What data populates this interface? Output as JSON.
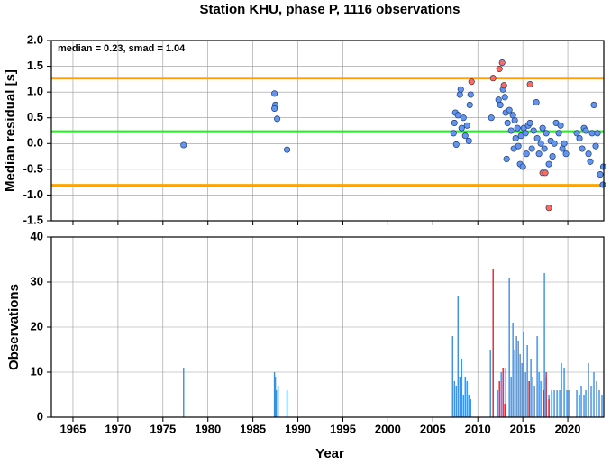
{
  "chart_data": [
    {
      "type": "scatter",
      "title": "Station KHU, phase P, 1116 observations",
      "ylabel": "Median residual [s]",
      "annotation": "median = 0.23, smad = 1.04",
      "ylim": [
        -1.5,
        2
      ],
      "yticks": [
        {
          "value": 2,
          "label": "2.0"
        },
        1.5,
        {
          "value": 1,
          "label": "1.0"
        },
        0.5,
        {
          "value": 0,
          "label": "0.0"
        },
        -0.5,
        {
          "value": -1,
          "label": "-1.0"
        },
        -1.5
      ],
      "grid": true,
      "hlines": [
        {
          "value": 1.27,
          "color": "#ffa500"
        },
        {
          "value": 0.23,
          "color": "#22ee22"
        },
        {
          "value": -0.81,
          "color": "#ffa500"
        }
      ],
      "series": [
        {
          "color": "#6495ed",
          "x": [
            1977.3,
            1987.4,
            1987.5,
            1987.4,
            1987.7,
            1988.8,
            2007.3,
            2007.4,
            2007.5,
            2007.6,
            2007.8,
            2008.0,
            2008.1,
            2008.2,
            2008.4,
            2008.6,
            2008.8,
            2009.0,
            2009.1,
            2009.2,
            2011.5,
            2012.3,
            2012.5,
            2012.8,
            2013.0,
            2013.1,
            2013.3,
            2013.5,
            2013.7,
            2013.9,
            2014.0,
            2014.1,
            2014.2,
            2014.4,
            2014.5,
            2014.7,
            2014.8,
            2015.0,
            2015.1,
            2015.3,
            2015.4,
            2015.6,
            2015.8,
            2016.0,
            2016.2,
            2016.5,
            2016.6,
            2016.8,
            2017.0,
            2017.2,
            2017.4,
            2017.6,
            2017.9,
            2018.1,
            2018.3,
            2018.5,
            2018.7,
            2019.0,
            2019.2,
            2019.4,
            2019.6,
            2019.8,
            2021.0,
            2021.3,
            2021.6,
            2021.8,
            2022.0,
            2022.3,
            2022.5,
            2022.7,
            2022.9,
            2023.1,
            2023.3,
            2023.6,
            2023.9,
            2023.95,
            2013.2
          ],
          "values": [
            -0.03,
            0.97,
            0.75,
            0.68,
            0.48,
            -0.12,
            0.2,
            0.4,
            0.6,
            -0.02,
            0.55,
            0.95,
            1.05,
            0.3,
            0.5,
            0.15,
            0.35,
            0.05,
            0.75,
            0.95,
            0.5,
            0.85,
            0.75,
            1.05,
            0.9,
            0.6,
            0.4,
            0.65,
            0.25,
            0.55,
            -0.1,
            0.45,
            0.1,
            0.3,
            -0.05,
            -0.4,
            0.15,
            -0.45,
            0.3,
            0.2,
            -0.2,
            0.35,
            0.4,
            -0.1,
            0.25,
            0.8,
            0.1,
            -0.2,
            0.0,
            0.3,
            -0.1,
            0.2,
            -0.4,
            0.05,
            -0.25,
            0.0,
            0.4,
            0.2,
            0.35,
            -0.1,
            0.0,
            -0.2,
            0.2,
            0.1,
            -0.1,
            0.3,
            0.25,
            -0.2,
            -0.35,
            0.2,
            0.75,
            -0.05,
            0.2,
            -0.6,
            -0.8,
            -0.45,
            -0.3
          ]
        },
        {
          "color": "#ff6a5a",
          "x": [
            2009.3,
            2011.7,
            2012.4,
            2012.7,
            2012.9,
            2015.8,
            2017.2,
            2017.5,
            2017.9
          ],
          "values": [
            1.2,
            1.27,
            1.45,
            1.57,
            1.13,
            1.15,
            -0.57,
            -0.57,
            -1.25
          ]
        }
      ]
    },
    {
      "type": "bar",
      "ylabel": "Observations",
      "xlabel": "Year",
      "xlim": [
        1962.6,
        2024
      ],
      "xticks": [
        1965,
        1970,
        1975,
        1980,
        1985,
        1990,
        1995,
        2000,
        2005,
        2010,
        2015,
        2020
      ],
      "ylim": [
        0,
        40
      ],
      "yticks": [
        0,
        10,
        20,
        30,
        40
      ],
      "grid": true,
      "series": [
        {
          "color": "#3a8ee6",
          "x": [
            1977.3,
            1987.4,
            1987.5,
            1987.6,
            1987.8,
            1988.8,
            2007.2,
            2007.4,
            2007.6,
            2007.8,
            2008.0,
            2008.2,
            2008.4,
            2008.6,
            2008.8,
            2009.0,
            2009.2,
            2011.4,
            2012.2,
            2012.6,
            2013.1,
            2013.5,
            2013.7,
            2013.9,
            2014.1,
            2014.3,
            2014.5,
            2014.7,
            2014.9,
            2015.1,
            2015.3,
            2015.5,
            2015.7,
            2015.9,
            2016.1,
            2016.3,
            2016.6,
            2016.8,
            2017.0,
            2017.4,
            2017.6,
            2017.9,
            2018.2,
            2018.5,
            2018.8,
            2019.1,
            2019.3,
            2019.6,
            2019.9,
            2020.1,
            2021.0,
            2021.3,
            2021.5,
            2021.8,
            2022.0,
            2022.3,
            2022.6,
            2022.9,
            2023.2,
            2023.5,
            2023.8
          ],
          "values": [
            11,
            10,
            9,
            6,
            7,
            6,
            18,
            8,
            7,
            27,
            9,
            13,
            5,
            9,
            8,
            5,
            4,
            15,
            6,
            10,
            11,
            31,
            9,
            21,
            15,
            18,
            17,
            14,
            12,
            19,
            10,
            16,
            8,
            13,
            9,
            7,
            18,
            10,
            8,
            32,
            9,
            5,
            6,
            6,
            6,
            6,
            12,
            11,
            6,
            6,
            6,
            5,
            7,
            5,
            6,
            12,
            7,
            10,
            8,
            6,
            5
          ]
        },
        {
          "color": "#e0202a",
          "x": [
            2011.7,
            2012.4,
            2012.8,
            2013.0,
            2015.7,
            2017.3,
            2017.6,
            2017.9
          ],
          "values": [
            33,
            8,
            11,
            3,
            8,
            6,
            10,
            4
          ]
        }
      ]
    }
  ]
}
